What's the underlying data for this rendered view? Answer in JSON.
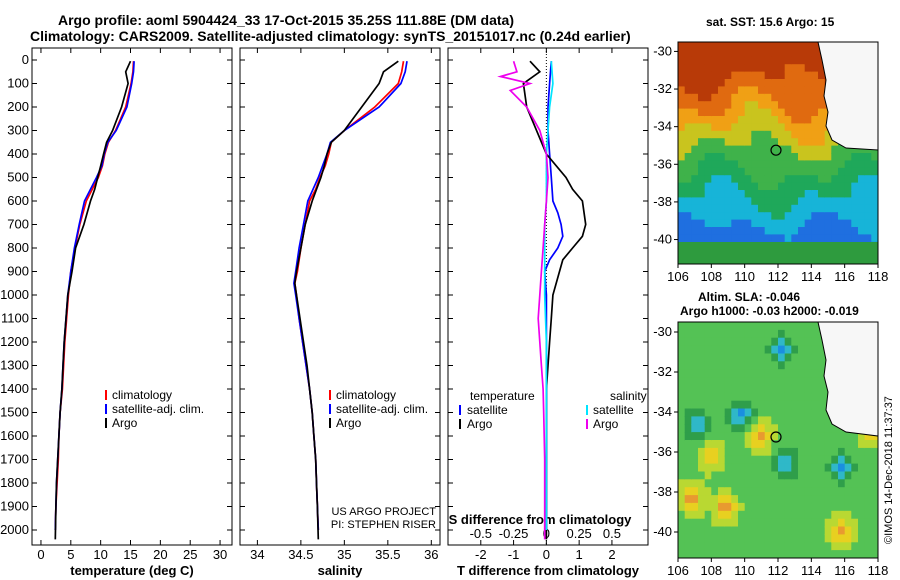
{
  "header": {
    "title_line1": "Argo profile: aoml 5904424_33 17-Oct-2015 35.25S 111.88E (DM data)",
    "title_line2": "Climatology: CARS2009. Satellite-adjusted climatology: synTS_20151017.nc (0.24d earlier)"
  },
  "colors": {
    "climatology": "#ff0000",
    "satellite": "#0000ff",
    "argo": "#000000",
    "satellite_s": "#00e5ff",
    "argo_s": "#ee00ee"
  },
  "depth_ticks": [
    "0",
    "100",
    "200",
    "300",
    "400",
    "500",
    "600",
    "700",
    "800",
    "900",
    "1000",
    "1100",
    "1200",
    "1300",
    "1400",
    "1500",
    "1600",
    "1700",
    "1800",
    "1900",
    "2000"
  ],
  "depth_range": [
    0,
    2050
  ],
  "chart_data": [
    {
      "type": "line",
      "name": "temperature",
      "xlabel": "temperature (deg C)",
      "xlim": [
        -1.5,
        32
      ],
      "xticks": [
        "0",
        "5",
        "10",
        "15",
        "20",
        "25",
        "30"
      ],
      "legend": [
        "climatology",
        "satellite-adj. clim.",
        "Argo"
      ],
      "series": [
        {
          "key": "climatology",
          "x": [
            15.5,
            15.4,
            15.1,
            14.2,
            12.5,
            11.3,
            10.7,
            10.3,
            9.6,
            8.6,
            7.6,
            6.5,
            5.7,
            5.0,
            4.6,
            4.3,
            4.0,
            3.8,
            3.6,
            3.2,
            3.0,
            2.9,
            2.7,
            2.5,
            2.4
          ],
          "y": [
            5,
            50,
            100,
            200,
            300,
            350,
            400,
            450,
            500,
            550,
            600,
            700,
            800,
            900,
            1000,
            1100,
            1200,
            1300,
            1400,
            1500,
            1600,
            1700,
            1800,
            1900,
            2000
          ]
        },
        {
          "key": "satellite",
          "x": [
            15.6,
            15.5,
            15.2,
            14.4,
            12.6,
            11.2,
            10.6,
            10.2,
            9.3,
            8.3,
            7.3,
            6.4,
            5.6,
            5.0,
            4.5,
            4.2,
            3.9,
            3.7,
            3.5,
            3.2,
            3.0,
            2.8,
            2.6,
            2.5,
            2.4
          ],
          "y": [
            5,
            50,
            100,
            200,
            300,
            350,
            400,
            450,
            500,
            550,
            600,
            700,
            800,
            900,
            1000,
            1100,
            1200,
            1300,
            1400,
            1500,
            1600,
            1700,
            1800,
            1900,
            2000
          ]
        },
        {
          "key": "argo",
          "x": [
            15.0,
            14.2,
            14.6,
            13.5,
            12.0,
            11.0,
            10.5,
            10.0,
            9.5,
            9.0,
            8.3,
            7.2,
            5.8,
            5.2,
            4.5,
            4.2,
            3.9,
            3.7,
            3.5,
            3.2,
            3.0,
            2.8,
            2.6,
            2.5,
            2.4
          ],
          "y": [
            5,
            50,
            100,
            200,
            300,
            350,
            400,
            450,
            500,
            550,
            600,
            700,
            800,
            900,
            1000,
            1100,
            1200,
            1300,
            1400,
            1500,
            1600,
            1700,
            1800,
            1900,
            2040
          ]
        }
      ]
    },
    {
      "type": "line",
      "name": "salinity",
      "xlabel": "salinity",
      "xlim": [
        33.8,
        36.1
      ],
      "xticks": [
        "34",
        "34.5",
        "35",
        "35.5",
        "36"
      ],
      "legend": [
        "climatology",
        "satellite-adj. clim.",
        "Argo"
      ],
      "credit": [
        "US ARGO PROJECT",
        "PI: STEPHEN RISER"
      ],
      "series": [
        {
          "key": "climatology",
          "x": [
            35.68,
            35.66,
            35.62,
            35.35,
            35.0,
            34.85,
            34.82,
            34.78,
            34.72,
            34.67,
            34.6,
            34.55,
            34.5,
            34.46,
            34.43,
            34.45,
            34.48,
            34.52,
            34.56,
            34.6,
            34.63,
            34.65,
            34.67,
            34.68,
            34.69,
            34.7
          ],
          "y": [
            5,
            50,
            100,
            200,
            300,
            350,
            400,
            450,
            500,
            550,
            600,
            700,
            800,
            900,
            950,
            1000,
            1100,
            1200,
            1300,
            1400,
            1500,
            1600,
            1700,
            1800,
            1900,
            2000
          ]
        },
        {
          "key": "satellite",
          "x": [
            35.72,
            35.7,
            35.65,
            35.4,
            35.0,
            34.84,
            34.8,
            34.75,
            34.7,
            34.64,
            34.58,
            34.53,
            34.48,
            34.44,
            34.42,
            34.44,
            34.48,
            34.52,
            34.56,
            34.6,
            34.63,
            34.65,
            34.67,
            34.68,
            34.69,
            34.7
          ],
          "y": [
            5,
            50,
            100,
            200,
            300,
            350,
            400,
            450,
            500,
            550,
            600,
            700,
            800,
            900,
            950,
            1000,
            1100,
            1200,
            1300,
            1400,
            1500,
            1600,
            1700,
            1800,
            1900,
            2000
          ]
        },
        {
          "key": "argo",
          "x": [
            35.62,
            35.45,
            35.4,
            35.2,
            35.0,
            34.85,
            34.8,
            34.77,
            34.73,
            34.68,
            34.63,
            34.55,
            34.5,
            34.45,
            34.43,
            34.45,
            34.49,
            34.53,
            34.57,
            34.6,
            34.63,
            34.65,
            34.67,
            34.68,
            34.69,
            34.7
          ],
          "y": [
            5,
            50,
            100,
            200,
            300,
            350,
            400,
            450,
            500,
            550,
            600,
            700,
            800,
            900,
            950,
            1000,
            1100,
            1200,
            1300,
            1400,
            1500,
            1600,
            1700,
            1800,
            1900,
            2040
          ]
        }
      ]
    },
    {
      "type": "line",
      "name": "differences",
      "xlabel": "T difference from climatology",
      "xlabel2": "S difference from climatology",
      "xlim": [
        -3,
        3.1
      ],
      "xticks": [
        "-2",
        "-1",
        "0",
        "1",
        "2"
      ],
      "xticks2": [
        "-0.5",
        "-0.25",
        "0",
        "0.25",
        "0.5"
      ],
      "legend_t": [
        "temperature",
        "satellite",
        "Argo"
      ],
      "legend_s": [
        "salinity",
        "satellite",
        "Argo"
      ],
      "series": [
        {
          "key": "satellite",
          "x": [
            0.15,
            0.1,
            0.05,
            0.05,
            0.1,
            0.15,
            0.2,
            0.35,
            0.45,
            0.5,
            0.35,
            0.1,
            -0.05,
            0.0,
            0.0,
            0.0,
            0.0,
            0.0,
            0.0,
            0.0,
            0.0
          ],
          "y": [
            5,
            100,
            200,
            300,
            400,
            500,
            600,
            650,
            700,
            750,
            800,
            850,
            900,
            1000,
            1100,
            1200,
            1300,
            1400,
            1500,
            1600,
            2000
          ]
        },
        {
          "key": "argo",
          "x": [
            -0.5,
            -0.2,
            -0.7,
            -0.6,
            0.0,
            0.6,
            0.8,
            1.1,
            1.2,
            1.1,
            0.8,
            0.5,
            0.4,
            0.2,
            0.15,
            0.1,
            0.05,
            0.0,
            0.0,
            0.0,
            0.0
          ],
          "y": [
            5,
            50,
            100,
            200,
            400,
            500,
            550,
            600,
            700,
            750,
            800,
            850,
            900,
            1000,
            1100,
            1200,
            1300,
            1400,
            1500,
            1600,
            2040
          ]
        },
        {
          "key": "satellite_s",
          "x": [
            0.15,
            0.2,
            0.1,
            0.05,
            0.0,
            0.0,
            0.0,
            -0.05,
            -0.05,
            -0.05,
            -0.05,
            0.0,
            0.0,
            0.0,
            0.0,
            0.0
          ],
          "y": [
            5,
            100,
            200,
            300,
            400,
            500,
            600,
            700,
            800,
            900,
            1000,
            1200,
            1400,
            1600,
            1800,
            2000
          ]
        },
        {
          "key": "argo_s",
          "x": [
            -1.0,
            -0.9,
            -1.4,
            -0.5,
            -1.1,
            -0.6,
            -0.2,
            0.0,
            0.05,
            0.0,
            -0.05,
            -0.1,
            -0.15,
            -0.2,
            -0.25,
            -0.2,
            -0.15,
            -0.1,
            -0.08,
            -0.05,
            -0.05
          ],
          "y": [
            5,
            50,
            70,
            100,
            130,
            200,
            300,
            400,
            500,
            600,
            700,
            800,
            900,
            1000,
            1100,
            1200,
            1300,
            1400,
            1500,
            1700,
            2040
          ]
        }
      ]
    }
  ],
  "map_sst": {
    "title": "sat. SST: 15.6 Argo: 15",
    "xticks": [
      "106",
      "108",
      "110",
      "112",
      "114",
      "116",
      "118"
    ],
    "yticks": [
      "-30",
      "-32",
      "-34",
      "-36",
      "-38",
      "-40"
    ],
    "xlim": [
      106,
      118
    ],
    "ylim": [
      -41.3,
      -29.5
    ],
    "marker": [
      111.88,
      -35.25
    ]
  },
  "map_sla": {
    "title": "Altim. SLA: -0.046",
    "subtitle": "Argo h1000: -0.03 h2000: -0.019",
    "xticks": [
      "106",
      "108",
      "110",
      "112",
      "114",
      "116",
      "118"
    ],
    "yticks": [
      "-30",
      "-32",
      "-34",
      "-36",
      "-38",
      "-40"
    ],
    "xlim": [
      106,
      118
    ],
    "ylim": [
      -41.3,
      -29.5
    ],
    "marker": [
      111.88,
      -35.25
    ]
  },
  "stamp": "©IMOS 14-Dec-2018 11:37:37"
}
